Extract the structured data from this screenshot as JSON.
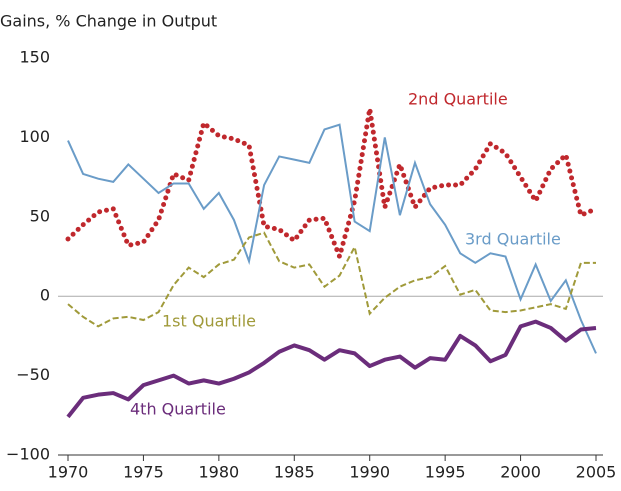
{
  "chart_data": {
    "type": "line",
    "ylabel": "Gains, % Change in Output",
    "x": [
      1970,
      1971,
      1972,
      1973,
      1974,
      1975,
      1976,
      1977,
      1978,
      1979,
      1980,
      1981,
      1982,
      1983,
      1984,
      1985,
      1986,
      1987,
      1988,
      1989,
      1990,
      1991,
      1992,
      1993,
      1994,
      1995,
      1996,
      1997,
      1998,
      1999,
      2000,
      2001,
      2002,
      2003,
      2004,
      2005
    ],
    "series": [
      {
        "name": "2nd Quartile",
        "color": "#c0282d",
        "style": "dotted",
        "values": [
          36,
          45,
          53,
          55,
          32,
          34,
          48,
          77,
          73,
          109,
          101,
          99,
          95,
          44,
          42,
          35,
          48,
          49,
          25,
          60,
          118,
          56,
          83,
          56,
          68,
          70,
          70,
          80,
          96,
          90,
          75,
          60,
          80,
          89,
          51,
          55
        ]
      },
      {
        "name": "3rd Quartile",
        "color": "#6a9cc8",
        "style": "solid",
        "values": [
          98,
          77,
          74,
          72,
          83,
          74,
          65,
          71,
          71,
          55,
          65,
          48,
          22,
          70,
          88,
          86,
          84,
          105,
          108,
          47,
          41,
          100,
          51,
          84,
          58,
          45,
          27,
          21,
          27,
          25,
          -2,
          20,
          -3,
          10,
          -15,
          -36
        ]
      },
      {
        "name": "1st Quartile",
        "color": "#a09a3a",
        "style": "dashed",
        "values": [
          -5,
          -13,
          -19,
          -14,
          -13,
          -15,
          -10,
          7,
          18,
          12,
          20,
          23,
          37,
          40,
          22,
          18,
          20,
          6,
          13,
          31,
          -11,
          -1,
          6,
          10,
          12,
          19,
          1,
          4,
          -9,
          -10,
          -9,
          -7,
          -5,
          -8,
          21,
          21
        ]
      },
      {
        "name": "4th Quartile",
        "color": "#6b2d7b",
        "style": "thick",
        "values": [
          -76,
          -64,
          -62,
          -61,
          -65,
          -56,
          -53,
          -50,
          -55,
          -53,
          -55,
          -52,
          -48,
          -42,
          -35,
          -31,
          -34,
          -40,
          -34,
          -36,
          -44,
          -40,
          -38,
          -45,
          -39,
          -40,
          -25,
          -31,
          -41,
          -37,
          -19,
          -16,
          -20,
          -28,
          -21,
          -20
        ]
      }
    ],
    "xlim": [
      1970,
      2005
    ],
    "xticks": [
      1970,
      1975,
      1980,
      1985,
      1990,
      1995,
      2000,
      2005
    ],
    "ylim": [
      -100,
      150
    ],
    "yticks": [
      {
        "value": -100,
        "label": "−100"
      },
      {
        "value": -50,
        "label": "−50"
      },
      0,
      50,
      100,
      150
    ]
  }
}
